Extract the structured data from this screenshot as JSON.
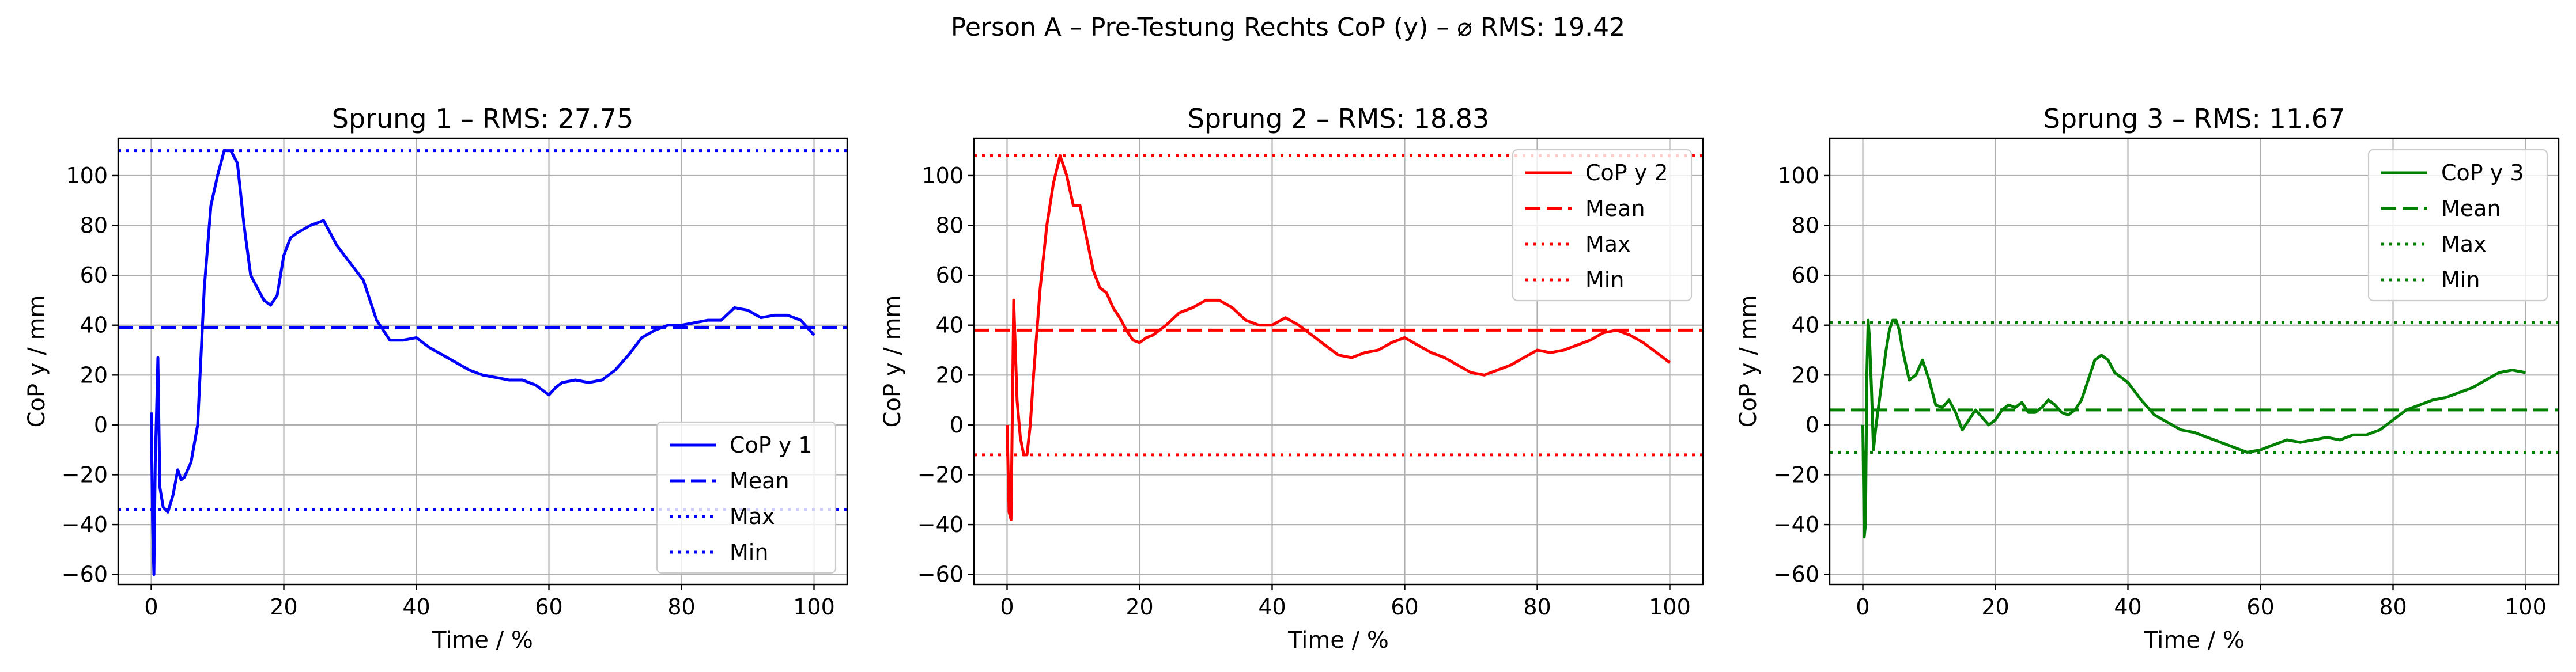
{
  "suptitle": "Person A – Pre-Testung Rechts CoP (y) – ⌀ RMS: 19.42",
  "chart_data": [
    {
      "type": "line",
      "title": "Sprung 1 – RMS: 27.75",
      "xlabel": "Time / %",
      "ylabel": "CoP y / mm",
      "xlim": [
        -5,
        105
      ],
      "ylim": [
        -64,
        115
      ],
      "xticks": [
        0,
        20,
        40,
        60,
        80,
        100
      ],
      "yticks": [
        -60,
        -40,
        -20,
        0,
        20,
        40,
        60,
        80,
        100
      ],
      "grid": true,
      "legend_position": "lower-right",
      "color": "#0000ff",
      "series": [
        {
          "name": "CoP y 1",
          "style": "solid",
          "x": [
            0,
            0.2,
            0.4,
            0.6,
            0.8,
            1,
            1.3,
            1.8,
            2.5,
            3.3,
            4,
            4.5,
            5,
            6,
            7,
            8,
            9,
            10,
            11,
            12,
            13,
            14,
            15,
            16,
            17,
            18,
            19,
            20,
            21,
            22,
            24,
            26,
            28,
            30,
            32,
            34,
            36,
            38,
            40,
            42,
            44,
            46,
            48,
            50,
            52,
            54,
            56,
            58,
            60,
            61,
            62,
            64,
            66,
            68,
            70,
            72,
            74,
            76,
            78,
            80,
            82,
            84,
            86,
            88,
            90,
            92,
            94,
            96,
            98,
            100
          ],
          "y": [
            5,
            -40,
            -60,
            -15,
            5,
            27,
            -25,
            -33,
            -35,
            -28,
            -18,
            -22,
            -21,
            -15,
            0,
            55,
            88,
            100,
            110,
            110,
            105,
            80,
            60,
            55,
            50,
            48,
            52,
            68,
            75,
            77,
            80,
            82,
            72,
            65,
            58,
            42,
            34,
            34,
            35,
            31,
            28,
            25,
            22,
            20,
            19,
            18,
            18,
            16,
            12,
            15,
            17,
            18,
            17,
            18,
            22,
            28,
            35,
            38,
            40,
            40,
            41,
            42,
            42,
            47,
            46,
            43,
            44,
            44,
            42,
            36
          ]
        },
        {
          "name": "Mean",
          "style": "dashed",
          "x": [
            -5,
            105
          ],
          "y": [
            39,
            39
          ]
        },
        {
          "name": "Max",
          "style": "dotted",
          "x": [
            -5,
            105
          ],
          "y": [
            110,
            110
          ]
        },
        {
          "name": "Min",
          "style": "dotted",
          "x": [
            -5,
            105
          ],
          "y": [
            -34,
            -34
          ]
        }
      ]
    },
    {
      "type": "line",
      "title": "Sprung 2 – RMS: 18.83",
      "xlabel": "Time / %",
      "ylabel": "CoP y / mm",
      "xlim": [
        -5,
        105
      ],
      "ylim": [
        -64,
        115
      ],
      "xticks": [
        0,
        20,
        40,
        60,
        80,
        100
      ],
      "yticks": [
        -60,
        -40,
        -20,
        0,
        20,
        40,
        60,
        80,
        100
      ],
      "grid": true,
      "legend_position": "upper-right",
      "color": "#ff0000",
      "series": [
        {
          "name": "CoP y 2",
          "style": "solid",
          "x": [
            0,
            0.3,
            0.6,
            1,
            1.5,
            2,
            2.5,
            3,
            3.5,
            4,
            5,
            6,
            7,
            8,
            9,
            10,
            11,
            12,
            13,
            14,
            15,
            16,
            17,
            18,
            19,
            20,
            21,
            22,
            24,
            26,
            28,
            30,
            32,
            34,
            36,
            38,
            40,
            42,
            44,
            46,
            48,
            50,
            52,
            54,
            56,
            58,
            60,
            62,
            64,
            66,
            68,
            70,
            72,
            74,
            76,
            78,
            80,
            82,
            84,
            86,
            88,
            90,
            92,
            94,
            96,
            98,
            100
          ],
          "y": [
            0,
            -35,
            -38,
            50,
            10,
            -5,
            -12,
            -12,
            0,
            20,
            55,
            80,
            97,
            108,
            100,
            88,
            88,
            75,
            62,
            55,
            53,
            47,
            43,
            38,
            34,
            33,
            35,
            36,
            40,
            45,
            47,
            50,
            50,
            47,
            42,
            40,
            40,
            43,
            40,
            36,
            32,
            28,
            27,
            29,
            30,
            33,
            35,
            32,
            29,
            27,
            24,
            21,
            20,
            22,
            24,
            27,
            30,
            29,
            30,
            32,
            34,
            37,
            38,
            36,
            33,
            29,
            25
          ]
        },
        {
          "name": "Mean",
          "style": "dashed",
          "x": [
            -5,
            105
          ],
          "y": [
            38,
            38
          ]
        },
        {
          "name": "Max",
          "style": "dotted",
          "x": [
            -5,
            105
          ],
          "y": [
            108,
            108
          ]
        },
        {
          "name": "Min",
          "style": "dotted",
          "x": [
            -5,
            105
          ],
          "y": [
            -12,
            -12
          ]
        }
      ]
    },
    {
      "type": "line",
      "title": "Sprung 3 – RMS: 11.67",
      "xlabel": "Time / %",
      "ylabel": "CoP y / mm",
      "xlim": [
        -5,
        105
      ],
      "ylim": [
        -64,
        115
      ],
      "xticks": [
        0,
        20,
        40,
        60,
        80,
        100
      ],
      "yticks": [
        -60,
        -40,
        -20,
        0,
        20,
        40,
        60,
        80,
        100
      ],
      "grid": true,
      "legend_position": "upper-right",
      "color": "#008000",
      "series": [
        {
          "name": "CoP y 3",
          "style": "solid",
          "x": [
            0,
            0.2,
            0.4,
            0.6,
            0.8,
            1,
            1.3,
            1.6,
            2,
            2.5,
            3,
            3.5,
            4,
            4.5,
            5,
            5.5,
            6,
            7,
            8,
            9,
            10,
            11,
            12,
            13,
            14,
            15,
            16,
            17,
            18,
            19,
            20,
            21,
            22,
            23,
            24,
            25,
            26,
            27,
            28,
            29,
            30,
            31,
            32,
            33,
            34,
            35,
            36,
            37,
            38,
            39,
            40,
            42,
            44,
            46,
            48,
            50,
            52,
            54,
            56,
            58,
            60,
            62,
            64,
            66,
            68,
            70,
            72,
            74,
            76,
            78,
            80,
            82,
            84,
            86,
            88,
            90,
            92,
            94,
            96,
            98,
            100
          ],
          "y": [
            0,
            -45,
            -40,
            20,
            42,
            35,
            15,
            -10,
            0,
            10,
            20,
            30,
            38,
            42,
            42,
            38,
            30,
            18,
            20,
            26,
            18,
            8,
            7,
            10,
            5,
            -2,
            2,
            6,
            3,
            0,
            2,
            6,
            8,
            7,
            9,
            5,
            5,
            7,
            10,
            8,
            5,
            4,
            6,
            10,
            18,
            26,
            28,
            26,
            21,
            19,
            17,
            10,
            4,
            1,
            -2,
            -3,
            -5,
            -7,
            -9,
            -11,
            -10,
            -8,
            -6,
            -7,
            -6,
            -5,
            -6,
            -4,
            -4,
            -2,
            2,
            6,
            8,
            10,
            11,
            13,
            15,
            18,
            21,
            22,
            21
          ]
        },
        {
          "name": "Mean",
          "style": "dashed",
          "x": [
            -5,
            105
          ],
          "y": [
            6,
            6
          ]
        },
        {
          "name": "Max",
          "style": "dotted",
          "x": [
            -5,
            105
          ],
          "y": [
            41,
            41
          ]
        },
        {
          "name": "Min",
          "style": "dotted",
          "x": [
            -5,
            105
          ],
          "y": [
            -11,
            -11
          ]
        }
      ]
    }
  ]
}
